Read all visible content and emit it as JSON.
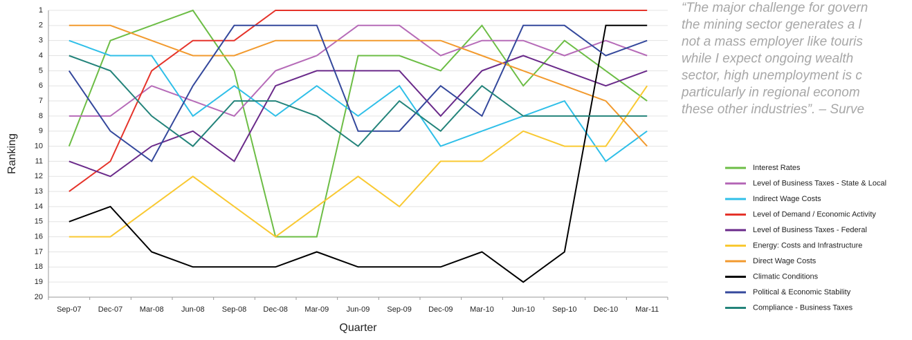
{
  "chart_data": {
    "type": "line",
    "categories": [
      "Sep-07",
      "Dec-07",
      "Mar-08",
      "Jun-08",
      "Sep-08",
      "Dec-08",
      "Mar-09",
      "Jun-09",
      "Sep-09",
      "Dec-09",
      "Mar-10",
      "Jun-10",
      "Sep-10",
      "Dec-10",
      "Mar-11"
    ],
    "x_label": "Quarter",
    "y_label": "Ranking",
    "ylim": [
      1,
      20
    ],
    "y_inverted": true,
    "yticks": [
      1,
      2,
      3,
      4,
      5,
      6,
      7,
      8,
      9,
      10,
      11,
      12,
      13,
      14,
      15,
      16,
      17,
      18,
      19,
      20
    ],
    "grid": true,
    "legend": "right",
    "series": [
      {
        "name": "Interest Rates",
        "color": "#6cbd45",
        "values": [
          10,
          3,
          2,
          1,
          5,
          16,
          16,
          4,
          4,
          5,
          2,
          6,
          3,
          5,
          7
        ]
      },
      {
        "name": "Level of Business Taxes - State & Local",
        "color": "#b66bb8",
        "values": [
          8,
          8,
          6,
          7,
          8,
          5,
          4,
          2,
          2,
          4,
          3,
          3,
          4,
          3,
          4
        ]
      },
      {
        "name": "Indirect Wage Costs",
        "color": "#2fbfe8",
        "values": [
          3,
          4,
          4,
          8,
          6,
          8,
          6,
          8,
          6,
          10,
          9,
          8,
          7,
          11,
          9
        ]
      },
      {
        "name": "Level of Demand / Economic Activity",
        "color": "#e5332a",
        "values": [
          13,
          11,
          5,
          3,
          3,
          1,
          1,
          1,
          1,
          1,
          1,
          1,
          1,
          1,
          1
        ]
      },
      {
        "name": "Level of Business Taxes - Federal",
        "color": "#6a2a8a",
        "values": [
          11,
          12,
          10,
          9,
          11,
          6,
          5,
          5,
          5,
          8,
          5,
          4,
          5,
          6,
          5
        ]
      },
      {
        "name": "Energy: Costs and Infrastructure",
        "color": "#f9c932",
        "values": [
          16,
          16,
          14,
          12,
          14,
          16,
          14,
          12,
          14,
          11,
          11,
          9,
          10,
          10,
          6
        ]
      },
      {
        "name": "Direct Wage Costs",
        "color": "#f29a2e",
        "values": [
          2,
          2,
          3,
          4,
          4,
          3,
          3,
          3,
          3,
          3,
          4,
          5,
          6,
          7,
          10
        ]
      },
      {
        "name": "Climatic Conditions",
        "color": "#000000",
        "values": [
          15,
          14,
          17,
          18,
          18,
          18,
          17,
          18,
          18,
          18,
          17,
          19,
          17,
          2,
          2
        ]
      },
      {
        "name": "Political & Economic Stability",
        "color": "#34489c",
        "values": [
          5,
          9,
          11,
          6,
          2,
          2,
          2,
          9,
          9,
          6,
          8,
          2,
          2,
          4,
          3
        ]
      },
      {
        "name": "Compliance - Business Taxes",
        "color": "#23837a",
        "values": [
          4,
          5,
          8,
          10,
          7,
          7,
          8,
          10,
          7,
          9,
          6,
          8,
          8,
          8,
          8
        ]
      }
    ],
    "annotation_lines": [
      "“The major challenge for govern",
      "the mining sector generates a l",
      "not a mass employer like touris",
      "while I expect ongoing wealth",
      "sector, high unemployment is c",
      "particularly in regional econom",
      "these other industries”. – Surve"
    ]
  }
}
